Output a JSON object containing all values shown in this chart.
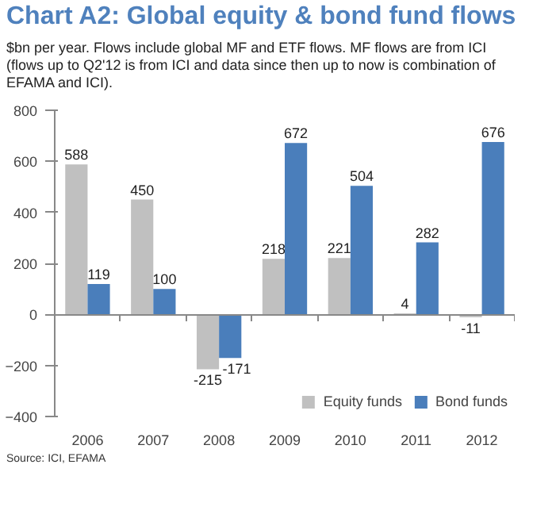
{
  "chart_data": {
    "type": "bar",
    "title": "Chart A2: Global equity & bond fund flows",
    "subtitle": "$bn per year. Flows include global MF and ETF flows. MF flows are from ICI (flows up to Q2'12 is from ICI and data since then up to now is combination of EFAMA and ICI).",
    "categories": [
      "2006",
      "2007",
      "2008",
      "2009",
      "2010",
      "2011",
      "2012"
    ],
    "series": [
      {
        "name": "Equity funds",
        "color": "#c0c0c0",
        "values": [
          588,
          450,
          -215,
          218,
          221,
          4,
          -11
        ]
      },
      {
        "name": "Bond funds",
        "color": "#4a7ebb",
        "values": [
          119,
          100,
          -171,
          672,
          504,
          282,
          676
        ]
      }
    ],
    "ylim": [
      -400,
      800
    ],
    "yticks": [
      -400,
      -200,
      0,
      200,
      400,
      600,
      800
    ],
    "data_labels": true,
    "legend": "bottom right",
    "annotations": [
      "Source: ICI, EFAMA"
    ]
  }
}
